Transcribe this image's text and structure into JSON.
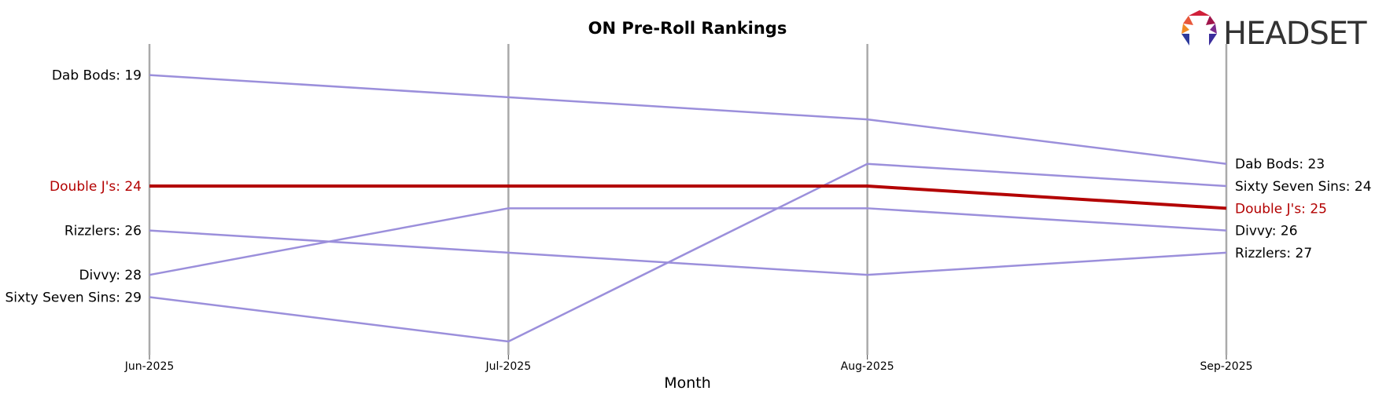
{
  "brand": {
    "name": "HEADSET"
  },
  "chart_data": {
    "type": "line",
    "title": "ON Pre-Roll Rankings",
    "xlabel": "Month",
    "ylabel": "",
    "x": [
      "Jun-2025",
      "Jul-2025",
      "Aug-2025",
      "Sep-2025"
    ],
    "y_inverted": true,
    "ylim": [
      31.6,
      17.6
    ],
    "grid": false,
    "highlight": "Double J's",
    "colors": {
      "highlight": "#b30000",
      "other": "#9b8fdb",
      "month_line": "#aaaaaa"
    },
    "series": [
      {
        "name": "Dab Bods",
        "values": [
          19,
          20,
          21,
          23
        ],
        "start_label": "Dab Bods: 19",
        "end_label": "Dab Bods: 23"
      },
      {
        "name": "Double J's",
        "values": [
          24,
          24,
          24,
          25
        ],
        "start_label": "Double J's: 24",
        "end_label": "Double J's: 25"
      },
      {
        "name": "Rizzlers",
        "values": [
          26,
          27,
          28,
          27
        ],
        "start_label": "Rizzlers: 26",
        "end_label": "Rizzlers: 27"
      },
      {
        "name": "Divvy",
        "values": [
          28,
          25,
          25,
          26
        ],
        "start_label": "Divvy: 28",
        "end_label": "Divvy: 26"
      },
      {
        "name": "Sixty Seven Sins",
        "values": [
          29,
          31,
          23,
          24
        ],
        "start_label": "Sixty Seven Sins: 29",
        "end_label": "Sixty Seven Sins: 24"
      }
    ]
  }
}
